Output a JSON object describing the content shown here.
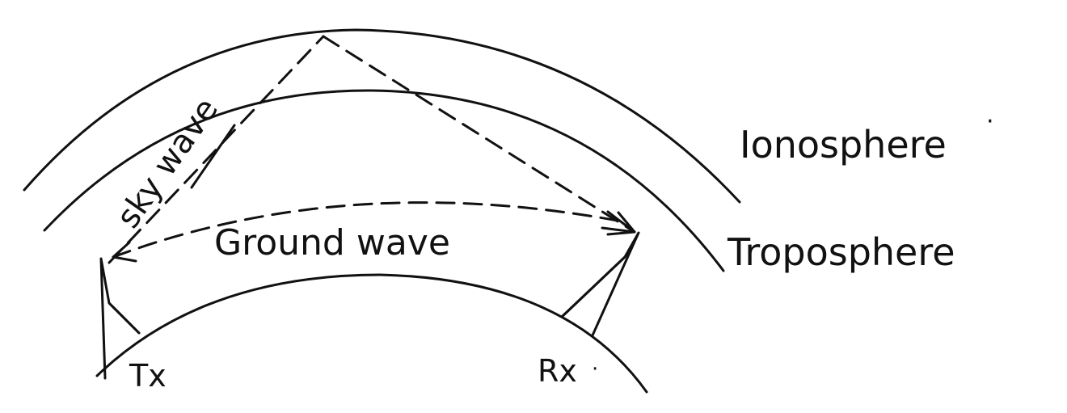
{
  "labels": {
    "ionosphere": "Ionosphere",
    "troposphere": "Troposphere",
    "sky_wave": "sky wave",
    "ground_wave": "Ground wave",
    "transmitter": "Tx",
    "receiver": "Rx"
  },
  "colors": {
    "ink": "#111111",
    "paper": "#ffffff"
  }
}
